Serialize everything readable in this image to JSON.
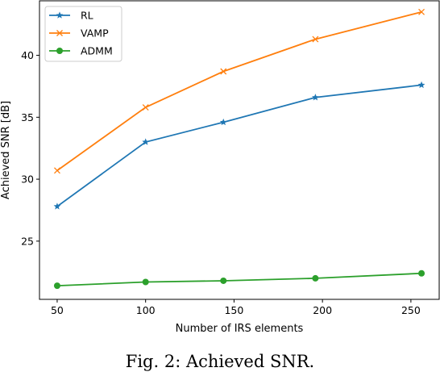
{
  "chart_data": {
    "type": "line",
    "xlabel": "Number of IRS elements",
    "ylabel": "Achieved SNR [dB]",
    "xlim": [
      40,
      266
    ],
    "ylim": [
      20.3,
      44.4
    ],
    "xticks": [
      50,
      100,
      150,
      200,
      250
    ],
    "yticks": [
      25,
      30,
      35,
      40
    ],
    "x": [
      50,
      100,
      144,
      196,
      256
    ],
    "grid": false,
    "legend_position": "top-left",
    "series": [
      {
        "name": "RL",
        "color": "#1f77b4",
        "marker": "star",
        "values": [
          27.8,
          33.0,
          34.6,
          36.6,
          37.6
        ]
      },
      {
        "name": "VAMP",
        "color": "#ff7f0e",
        "marker": "x",
        "values": [
          30.7,
          35.8,
          38.7,
          41.3,
          43.5
        ]
      },
      {
        "name": "ADMM",
        "color": "#2ca02c",
        "marker": "circle",
        "values": [
          21.4,
          21.7,
          21.8,
          22.0,
          22.4
        ]
      }
    ]
  },
  "caption": "Fig. 2: Achieved SNR."
}
